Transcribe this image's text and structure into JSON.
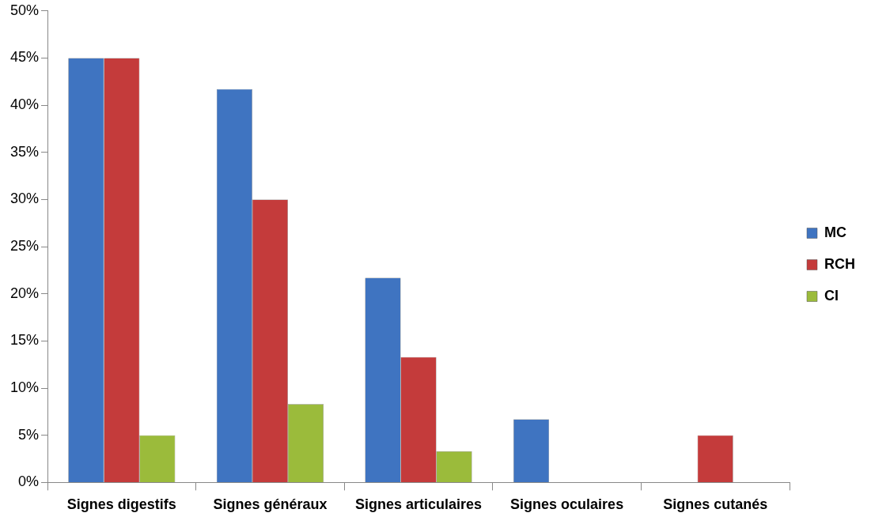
{
  "chart_data": {
    "type": "bar",
    "categories": [
      "Signes digestifs",
      "Signes généraux",
      "Signes articulaires",
      "Signes oculaires",
      "Signes cutanés"
    ],
    "series": [
      {
        "name": "MC",
        "color": "#3f74c1",
        "values": [
          45,
          41.7,
          21.7,
          6.7,
          0
        ]
      },
      {
        "name": "RCH",
        "color": "#c43b3b",
        "values": [
          45,
          30,
          13.3,
          0,
          5
        ]
      },
      {
        "name": "CI",
        "color": "#9bbb3b",
        "values": [
          5,
          8.3,
          3.3,
          0,
          0
        ]
      }
    ],
    "ylim": [
      0,
      50
    ],
    "yticks": [
      {
        "value": 0,
        "label": "0%"
      },
      {
        "value": 5,
        "label": "5%"
      },
      {
        "value": 10,
        "label": "10%"
      },
      {
        "value": 15,
        "label": "15%"
      },
      {
        "value": 20,
        "label": "20%"
      },
      {
        "value": 25,
        "label": "25%"
      },
      {
        "value": 30,
        "label": "30%"
      },
      {
        "value": 35,
        "label": "35%"
      },
      {
        "value": 40,
        "label": "40%"
      },
      {
        "value": 45,
        "label": "45%"
      },
      {
        "value": 50,
        "label": "50%"
      }
    ],
    "grid": false,
    "legend": "right"
  }
}
